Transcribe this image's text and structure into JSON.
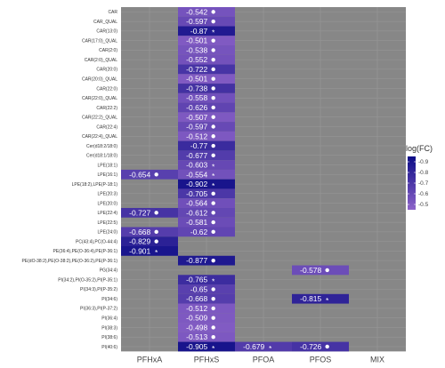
{
  "chart_data": {
    "type": "heatmap",
    "columns": [
      "PFHxA",
      "PFHxS",
      "PFOA",
      "PFOS",
      "MIX"
    ],
    "rows": [
      "CAR",
      "CAR_QUAL",
      "CAR(13:0)",
      "CAR(17:0)_QUAL",
      "CAR(2:0)",
      "CAR(2:0)_QUAL",
      "CAR(20:0)",
      "CAR(20:0)_QUAL",
      "CAR(22:0)",
      "CAR(22:0)_QUAL",
      "CAR(22:2)",
      "CAR(22:2)_QUAL",
      "CAR(22:4)",
      "CAR(22:4)_QUAL",
      "Cer(d18:2/18:0)",
      "Cer(d18:1/18:0)",
      "LPE(18:1)",
      "LPE(16:1)",
      "LPE(18:2),LPE(P-18:1)",
      "LPE(20:3)",
      "LPE(20:0)",
      "LPE(22:4)",
      "LPE(22:5)",
      "LPE(24:0)",
      "PC(43:4),PC(O-44:4)",
      "PE(36:4),PE(O-36:4),PE(P-36:1)",
      "PE(dO-38:2),PE(O-38:2),PE(O-36:2),PE(P-36:1)",
      "PG(34:4)",
      "PI(34:2),PI(O-35:2),PI(P-35:1)",
      "PI(34:3),PI(P-35:2)",
      "PI(34:6)",
      "PI(36:3),PI(P-37:2)",
      "PI(36:4)",
      "PI(38:3)",
      "PI(38:6)",
      "PI(40:6)"
    ],
    "cells": [
      {
        "row": "CAR",
        "col": "PFHxS",
        "value": -0.542,
        "mark": "dot"
      },
      {
        "row": "CAR_QUAL",
        "col": "PFHxS",
        "value": -0.597,
        "mark": "dot"
      },
      {
        "row": "CAR(13:0)",
        "col": "PFHxS",
        "value": -0.87,
        "mark": "*"
      },
      {
        "row": "CAR(17:0)_QUAL",
        "col": "PFHxS",
        "value": -0.501,
        "mark": "dot"
      },
      {
        "row": "CAR(2:0)",
        "col": "PFHxS",
        "value": -0.538,
        "mark": "dot"
      },
      {
        "row": "CAR(2:0)_QUAL",
        "col": "PFHxS",
        "value": -0.552,
        "mark": "dot"
      },
      {
        "row": "CAR(20:0)",
        "col": "PFHxS",
        "value": -0.722,
        "mark": "dot"
      },
      {
        "row": "CAR(20:0)_QUAL",
        "col": "PFHxS",
        "value": -0.501,
        "mark": "dot"
      },
      {
        "row": "CAR(22:0)",
        "col": "PFHxS",
        "value": -0.738,
        "mark": "dot"
      },
      {
        "row": "CAR(22:0)_QUAL",
        "col": "PFHxS",
        "value": -0.558,
        "mark": "dot"
      },
      {
        "row": "CAR(22:2)",
        "col": "PFHxS",
        "value": -0.626,
        "mark": "dot"
      },
      {
        "row": "CAR(22:2)_QUAL",
        "col": "PFHxS",
        "value": -0.507,
        "mark": "dot"
      },
      {
        "row": "CAR(22:4)",
        "col": "PFHxS",
        "value": -0.597,
        "mark": "dot"
      },
      {
        "row": "CAR(22:4)_QUAL",
        "col": "PFHxS",
        "value": -0.512,
        "mark": "dot"
      },
      {
        "row": "Cer(d18:2/18:0)",
        "col": "PFHxS",
        "value": -0.77,
        "mark": "dot"
      },
      {
        "row": "Cer(d18:1/18:0)",
        "col": "PFHxS",
        "value": -0.677,
        "mark": "dot"
      },
      {
        "row": "LPE(18:1)",
        "col": "PFHxS",
        "value": -0.603,
        "mark": "*"
      },
      {
        "row": "LPE(16:1)",
        "col": "PFHxA",
        "value": -0.654,
        "mark": "dot"
      },
      {
        "row": "LPE(16:1)",
        "col": "PFHxS",
        "value": -0.554,
        "mark": "*"
      },
      {
        "row": "LPE(18:2),LPE(P-18:1)",
        "col": "PFHxS",
        "value": -0.902,
        "mark": "*"
      },
      {
        "row": "LPE(20:3)",
        "col": "PFHxS",
        "value": -0.705,
        "mark": "dot"
      },
      {
        "row": "LPE(20:0)",
        "col": "PFHxS",
        "value": -0.564,
        "mark": "dot"
      },
      {
        "row": "LPE(22:4)",
        "col": "PFHxA",
        "value": -0.727,
        "mark": "dot"
      },
      {
        "row": "LPE(22:4)",
        "col": "PFHxS",
        "value": -0.612,
        "mark": "dot"
      },
      {
        "row": "LPE(22:5)",
        "col": "PFHxS",
        "value": -0.581,
        "mark": "dot"
      },
      {
        "row": "LPE(24:0)",
        "col": "PFHxA",
        "value": -0.668,
        "mark": "dot"
      },
      {
        "row": "LPE(24:0)",
        "col": "PFHxS",
        "value": -0.62,
        "mark": "dot"
      },
      {
        "row": "PC(43:4),PC(O-44:4)",
        "col": "PFHxA",
        "value": -0.829,
        "mark": "dot"
      },
      {
        "row": "PE(36:4),PE(O-36:4),PE(P-36:1)",
        "col": "PFHxA",
        "value": -0.901,
        "mark": "*"
      },
      {
        "row": "PE(dO-38:2),PE(O-38:2),PE(O-36:2),PE(P-36:1)",
        "col": "PFHxS",
        "value": -0.877,
        "mark": "dot"
      },
      {
        "row": "PG(34:4)",
        "col": "PFOS",
        "value": -0.578,
        "mark": "dot"
      },
      {
        "row": "PI(34:2),PI(O-35:2),PI(P-35:1)",
        "col": "PFHxS",
        "value": -0.765,
        "mark": "*"
      },
      {
        "row": "PI(34:3),PI(P-35:2)",
        "col": "PFHxS",
        "value": -0.65,
        "mark": "dot"
      },
      {
        "row": "PI(34:6)",
        "col": "PFHxS",
        "value": -0.668,
        "mark": "dot"
      },
      {
        "row": "PI(34:6)",
        "col": "PFOS",
        "value": -0.815,
        "mark": "*"
      },
      {
        "row": "PI(36:3),PI(P-37:2)",
        "col": "PFHxS",
        "value": -0.512,
        "mark": "dot"
      },
      {
        "row": "PI(36:4)",
        "col": "PFHxS",
        "value": -0.509,
        "mark": "dot"
      },
      {
        "row": "PI(38:3)",
        "col": "PFHxS",
        "value": -0.498,
        "mark": "dot"
      },
      {
        "row": "PI(38:6)",
        "col": "PFHxS",
        "value": -0.513,
        "mark": "dot"
      },
      {
        "row": "PI(40:6)",
        "col": "PFHxS",
        "value": -0.905,
        "mark": "*"
      },
      {
        "row": "PI(40:6)",
        "col": "PFOA",
        "value": -0.679,
        "mark": "*"
      },
      {
        "row": "PI(40:6)",
        "col": "PFOS",
        "value": -0.726,
        "mark": "dot"
      }
    ],
    "legend": {
      "title": "log(FC)",
      "ticks": [
        "-0.9",
        "-0.8",
        "-0.7",
        "-0.6",
        "-0.5"
      ],
      "range": [
        -0.95,
        -0.45
      ],
      "placement": "right",
      "color_low": "#0c0c86",
      "color_high": "#8d63c9"
    },
    "background_color": "#878787",
    "grid": true,
    "xlabel": "",
    "ylabel": ""
  }
}
